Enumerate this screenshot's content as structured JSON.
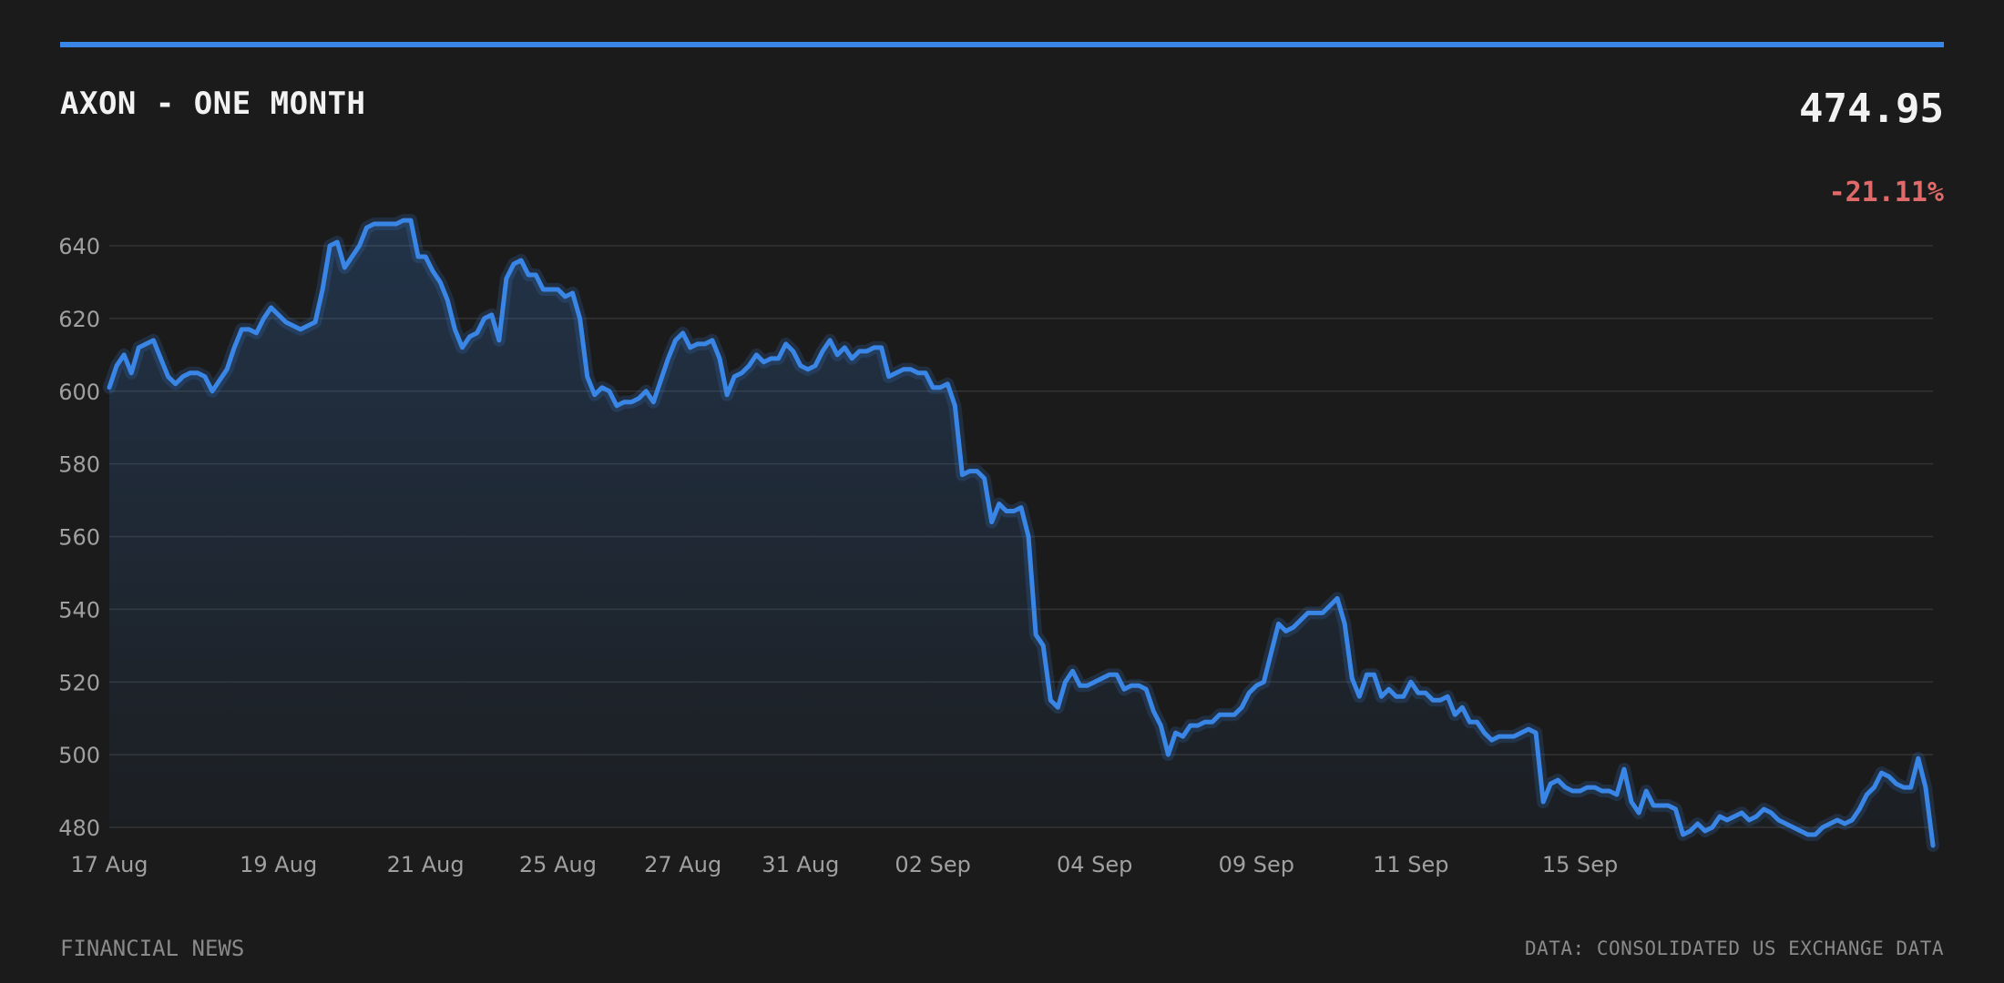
{
  "header": {
    "title": "AXON - ONE MONTH",
    "price": "474.95",
    "change": "-21.11%"
  },
  "footer": {
    "source_left": "FINANCIAL NEWS",
    "source_right": "DATA: CONSOLIDATED US EXCHANGE DATA"
  },
  "colors": {
    "accent": "#3a86e6",
    "negative": "#e06a6a",
    "background": "#1b1b1b",
    "grid": "#333333"
  },
  "chart_data": {
    "type": "line",
    "title": "AXON - ONE MONTH",
    "xlabel": "",
    "ylabel": "",
    "ylim": [
      480,
      640
    ],
    "yticks": [
      480,
      500,
      520,
      540,
      560,
      580,
      600,
      620,
      640
    ],
    "xtick_labels": [
      "17 Aug",
      "19 Aug",
      "21 Aug",
      "25 Aug",
      "27 Aug",
      "31 Aug",
      "02 Sep",
      "04 Sep",
      "09 Sep",
      "11 Sep",
      "15 Sep"
    ],
    "xtick_index": [
      0,
      23,
      43,
      61,
      78,
      94,
      112,
      134,
      156,
      177,
      200
    ],
    "grid": true,
    "legend": "none",
    "fill": "area-gradient",
    "series": [
      {
        "values": [
          601,
          607,
          610,
          605,
          612,
          613,
          614,
          609,
          604,
          602,
          604,
          605,
          605,
          604,
          600,
          603,
          606,
          612,
          617,
          617,
          616,
          620,
          623,
          621,
          619,
          618,
          617,
          618,
          619,
          628,
          640,
          641,
          634,
          637,
          640,
          645,
          646,
          646,
          646,
          646,
          647,
          647,
          637,
          637,
          633,
          630,
          625,
          617,
          612,
          615,
          616,
          620,
          621,
          614,
          631,
          635,
          636,
          632,
          632,
          628,
          628,
          628,
          626,
          627,
          620,
          604,
          599,
          601,
          600,
          596,
          597,
          597,
          598,
          600,
          597,
          603,
          609,
          614,
          616,
          612,
          613,
          613,
          614,
          609,
          599,
          604,
          605,
          607,
          610,
          608,
          609,
          609,
          613,
          611,
          607,
          606,
          607,
          611,
          614,
          610,
          612,
          609,
          611,
          611,
          612,
          612,
          604,
          605,
          606,
          606,
          605,
          605,
          601,
          601,
          602,
          596,
          577,
          578,
          578,
          576,
          564,
          569,
          567,
          567,
          568,
          560,
          533,
          530,
          515,
          513,
          520,
          523,
          519,
          519,
          520,
          521,
          522,
          522,
          518,
          519,
          519,
          518,
          512,
          508,
          500,
          506,
          505,
          508,
          508,
          509,
          509,
          511,
          511,
          511,
          513,
          517,
          519,
          520,
          528,
          536,
          534,
          535,
          537,
          539,
          539,
          539,
          541,
          543,
          536,
          521,
          516,
          522,
          522,
          516,
          518,
          516,
          516,
          520,
          517,
          517,
          515,
          515,
          516,
          511,
          513,
          509,
          509,
          506,
          504,
          505,
          505,
          505,
          506,
          507,
          506,
          487,
          492,
          493,
          491,
          490,
          490,
          491,
          491,
          490,
          490,
          489,
          496,
          487,
          484,
          490,
          486,
          486,
          486,
          485,
          478,
          479,
          481,
          479,
          480,
          483,
          482,
          483,
          484,
          482,
          483,
          485,
          484,
          482,
          481,
          480,
          479,
          478,
          478,
          480,
          481,
          482,
          481,
          482,
          485,
          489,
          491,
          495,
          494,
          492,
          491,
          491,
          499,
          491,
          475
        ]
      }
    ]
  }
}
